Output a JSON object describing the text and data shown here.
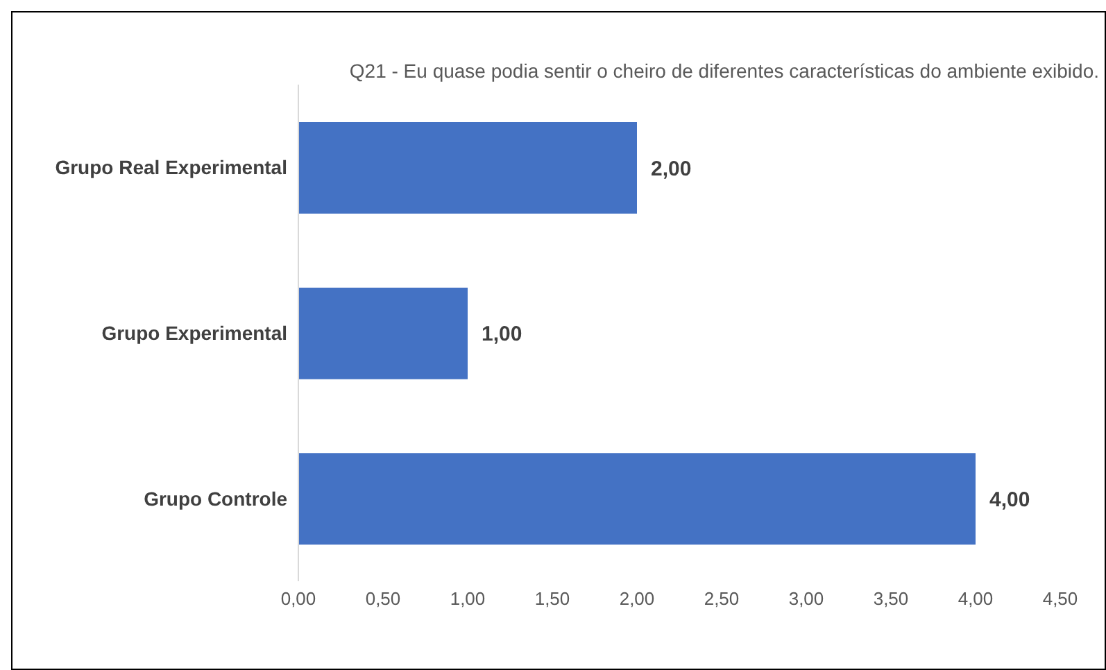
{
  "chart_data": {
    "type": "bar",
    "orientation": "horizontal",
    "title": "Q21 - Eu quase podia sentir o cheiro de diferentes características do ambiente exibido.",
    "categories": [
      "Grupo Real Experimental",
      "Grupo Experimental",
      "Grupo Controle"
    ],
    "values": [
      2,
      1,
      4
    ],
    "color": "#4472c4",
    "value_labels": [
      "2,00",
      "1,00",
      "4,00"
    ],
    "xlim": [
      0,
      4.5
    ],
    "xticks": [
      {
        "value": 0,
        "label": "0,00"
      },
      {
        "value": 0.5,
        "label": "0,50"
      },
      {
        "value": 1,
        "label": "1,00"
      },
      {
        "value": 1.5,
        "label": "1,50"
      },
      {
        "value": 2,
        "label": "2,00"
      },
      {
        "value": 2.5,
        "label": "2,50"
      },
      {
        "value": 3,
        "label": "3,00"
      },
      {
        "value": 3.5,
        "label": "3,50"
      },
      {
        "value": 4,
        "label": "4,00"
      },
      {
        "value": 4.5,
        "label": "4,50"
      }
    ],
    "grid": false
  }
}
